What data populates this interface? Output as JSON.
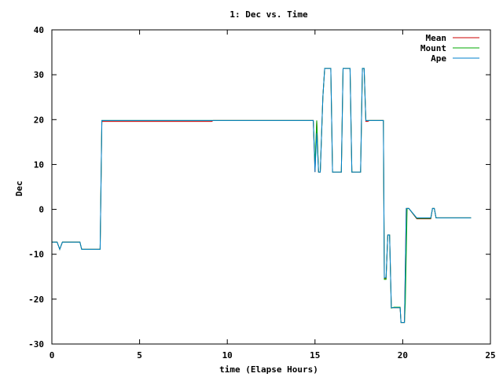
{
  "chart_data": {
    "type": "line",
    "title": "1: Dec vs. Time",
    "xlabel": "time (Elapse Hours)",
    "ylabel": "Dec",
    "xlim": [
      0,
      25
    ],
    "ylim": [
      -30,
      40
    ],
    "x_ticks": [
      0,
      5,
      10,
      15,
      20,
      25
    ],
    "y_ticks": [
      -30,
      -20,
      -10,
      0,
      10,
      20,
      30,
      40
    ],
    "grid": false,
    "legend_position": "top-right",
    "series": [
      {
        "name": "Mean",
        "color": "#cc0000",
        "x": [
          0,
          0.3,
          0.45,
          0.6,
          1.6,
          1.7,
          2.6,
          2.75,
          2.85,
          3.0,
          9.1,
          9.2,
          14.9,
          15.0,
          15.1,
          15.2,
          15.3,
          15.45,
          15.55,
          15.6,
          15.65,
          15.9,
          16.0,
          16.1,
          16.5,
          16.6,
          16.7,
          17.0,
          17.1,
          17.2,
          17.6,
          17.7,
          17.8,
          17.9,
          18.0,
          18.1,
          18.2,
          18.8,
          18.9,
          18.95,
          19.05,
          19.15,
          19.25,
          19.35,
          19.5,
          19.6,
          19.85,
          19.9,
          19.95,
          20.1,
          20.2,
          20.25,
          20.35,
          20.8,
          21.6,
          21.7,
          21.8,
          21.9,
          22.0,
          22.2,
          22.6,
          23.9
        ],
        "y": [
          -7.3,
          -7.3,
          -8.9,
          -7.3,
          -7.3,
          -8.9,
          -8.9,
          -8.9,
          19.6,
          19.6,
          19.6,
          19.8,
          19.8,
          8.3,
          19.8,
          8.3,
          8.3,
          25.0,
          31.4,
          31.4,
          31.4,
          31.4,
          8.3,
          8.3,
          8.3,
          31.4,
          31.4,
          31.4,
          8.3,
          8.3,
          8.3,
          31.4,
          31.4,
          19.6,
          19.6,
          19.8,
          19.8,
          19.8,
          19.8,
          -15.4,
          -15.4,
          -5.7,
          -5.7,
          -21.9,
          -21.9,
          -21.9,
          -21.9,
          -25.2,
          -25.2,
          -25.2,
          0.2,
          0.2,
          0.2,
          -2.1,
          -2.1,
          0.2,
          0.2,
          -1.9,
          -1.9,
          -1.9,
          -1.9,
          -1.9
        ]
      },
      {
        "name": "Mount",
        "color": "#00aa00",
        "x": [
          0,
          0.3,
          0.45,
          0.6,
          1.6,
          1.7,
          2.6,
          2.75,
          2.85,
          3.0,
          14.9,
          15.0,
          15.1,
          15.2,
          15.3,
          15.45,
          15.55,
          15.6,
          15.65,
          15.9,
          16.0,
          16.1,
          16.5,
          16.6,
          16.7,
          17.0,
          17.1,
          17.2,
          17.6,
          17.7,
          17.8,
          17.9,
          18.0,
          18.1,
          18.2,
          18.8,
          18.9,
          18.95,
          19.05,
          19.15,
          19.25,
          19.35,
          19.5,
          19.6,
          19.85,
          19.9,
          19.95,
          20.1,
          20.15,
          20.25,
          20.35,
          20.8,
          21.6,
          21.7,
          21.8,
          21.9,
          22.0,
          22.2,
          22.6,
          23.9
        ],
        "y": [
          -7.3,
          -7.3,
          -8.9,
          -7.3,
          -7.3,
          -8.9,
          -8.9,
          -8.9,
          19.8,
          19.8,
          19.8,
          10.0,
          19.8,
          8.3,
          8.3,
          25.0,
          31.4,
          31.4,
          31.4,
          31.4,
          8.3,
          8.3,
          8.3,
          31.4,
          31.4,
          31.4,
          8.3,
          8.3,
          8.3,
          31.4,
          31.4,
          19.8,
          19.8,
          19.8,
          19.8,
          19.8,
          19.8,
          -15.6,
          -15.6,
          -5.7,
          -5.7,
          -22.0,
          -21.8,
          -21.8,
          -21.8,
          -25.2,
          -25.2,
          -25.2,
          -21.0,
          0.2,
          0.2,
          -2.0,
          -2.0,
          0.2,
          0.2,
          -1.9,
          -1.9,
          -1.9,
          -1.9,
          -1.9
        ]
      },
      {
        "name": "Ape",
        "color": "#0080cc",
        "x": [
          0,
          0.3,
          0.45,
          0.6,
          1.6,
          1.7,
          2.6,
          2.75,
          2.85,
          3.0,
          14.9,
          15.0,
          15.1,
          15.2,
          15.3,
          15.45,
          15.55,
          15.6,
          15.65,
          15.9,
          16.0,
          16.1,
          16.5,
          16.6,
          16.7,
          17.0,
          17.1,
          17.2,
          17.6,
          17.7,
          17.8,
          17.9,
          18.0,
          18.1,
          18.2,
          18.8,
          18.9,
          18.95,
          19.05,
          19.15,
          19.25,
          19.35,
          19.5,
          19.6,
          19.85,
          19.9,
          19.95,
          20.1,
          20.2,
          20.25,
          20.35,
          20.8,
          21.6,
          21.7,
          21.8,
          21.9,
          22.0,
          22.2,
          22.6,
          23.9
        ],
        "y": [
          -7.3,
          -7.3,
          -8.9,
          -7.3,
          -7.3,
          -8.9,
          -8.9,
          -8.9,
          19.8,
          19.8,
          19.8,
          8.3,
          17.0,
          8.3,
          8.3,
          25.0,
          31.4,
          31.4,
          31.4,
          31.4,
          8.3,
          8.3,
          8.3,
          31.4,
          31.4,
          31.4,
          8.3,
          8.3,
          8.3,
          31.4,
          31.4,
          19.8,
          19.8,
          19.8,
          19.8,
          19.8,
          19.8,
          -15.2,
          -15.2,
          -5.7,
          -5.7,
          -21.9,
          -21.9,
          -21.9,
          -21.9,
          -25.2,
          -25.2,
          -25.2,
          0.2,
          0.2,
          0.2,
          -1.9,
          -1.9,
          0.2,
          0.2,
          -1.9,
          -1.9,
          -1.9,
          -1.9,
          -1.9
        ]
      }
    ]
  }
}
